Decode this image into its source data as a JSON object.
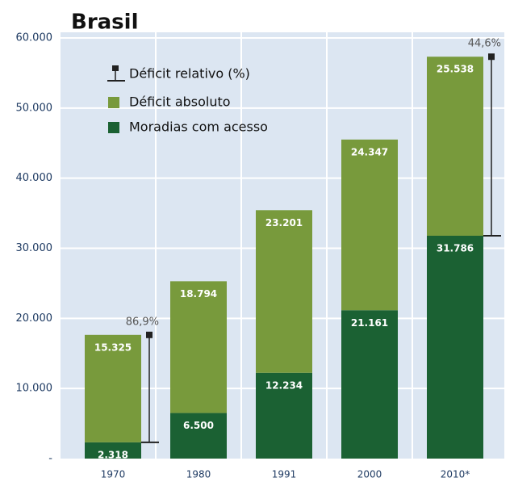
{
  "chart_data": {
    "type": "stacked-bar",
    "title": "Brasil",
    "categories": [
      "1970",
      "1980",
      "1991",
      "2000",
      "2010*"
    ],
    "series": [
      {
        "name": "Moradias com acesso",
        "color": "#1b6133",
        "values": [
          2318,
          6500,
          12234,
          21161,
          31786
        ],
        "value_labels": [
          "2.318",
          "6.500",
          "12.234",
          "21.161",
          "31.786"
        ]
      },
      {
        "name": "Déficit absoluto",
        "color": "#789a3c",
        "values": [
          15325,
          18794,
          23201,
          24347,
          25538
        ],
        "value_labels": [
          "15.325",
          "18.794",
          "23.201",
          "24.347",
          "25.538"
        ]
      },
      {
        "name": "Déficit relativo (%)",
        "color": "#222222",
        "values": [
          86.9,
          null,
          null,
          null,
          44.6
        ],
        "value_labels": [
          "86,9%",
          null,
          null,
          null,
          "44,6%"
        ]
      }
    ],
    "ylim": [
      0,
      60000
    ],
    "yticks": [
      {
        "value": 0,
        "label": "-"
      },
      {
        "value": 10000,
        "label": "10.000"
      },
      {
        "value": 20000,
        "label": "20.000"
      },
      {
        "value": 30000,
        "label": "30.000"
      },
      {
        "value": 40000,
        "label": "40.000"
      },
      {
        "value": 50000,
        "label": "50.000"
      },
      {
        "value": 60000,
        "label": "60.000"
      }
    ],
    "grid": true
  }
}
